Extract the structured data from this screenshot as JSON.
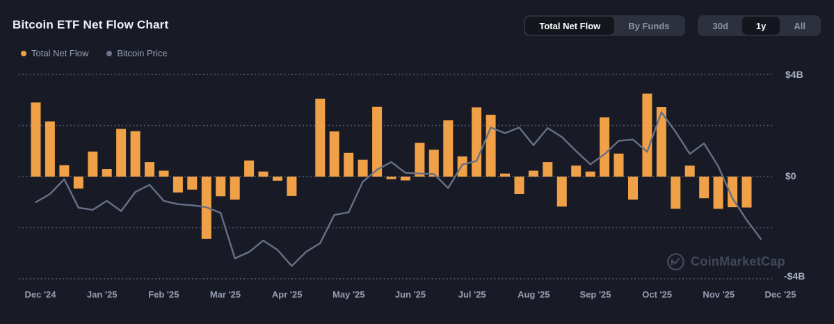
{
  "header": {
    "title": "Bitcoin ETF Net Flow Chart"
  },
  "legend": {
    "items": [
      {
        "label": "Total Net Flow",
        "color": "#f0a046"
      },
      {
        "label": "Bitcoin Price",
        "color": "#6d7488"
      }
    ]
  },
  "controls": {
    "view_toggle": {
      "options": [
        "Total Net Flow",
        "By Funds"
      ],
      "selected": "Total Net Flow"
    },
    "range_toggle": {
      "options": [
        "30d",
        "1y",
        "All"
      ],
      "selected": "1y"
    }
  },
  "watermark": {
    "text": "CoinMarketCap",
    "logo": "coinmarketcap-logo"
  },
  "colors": {
    "background": "#181b26",
    "bar": "#f0a046",
    "line": "#687085",
    "grid": "#5d6375",
    "control_bg": "#2d313d",
    "selected_pill_bg": "#14161e"
  },
  "chart_data": {
    "type": "bar",
    "title": "Bitcoin ETF Net Flow Chart",
    "x_unit": "week",
    "x_range": [
      "Dec 2024",
      "Dec 2025"
    ],
    "x_tick_labels": [
      "Dec '24",
      "Jan '25",
      "Feb '25",
      "Mar '25",
      "Apr '25",
      "May '25",
      "Jun '25",
      "Jul '25",
      "Aug '25",
      "Sep '25",
      "Oct '25",
      "Nov '25",
      "Dec '25"
    ],
    "y_tick_labels": [
      "$4B",
      "$0",
      "-$4B"
    ],
    "y_gridlines_billions": [
      4,
      2,
      0,
      -2,
      -4
    ],
    "ylim": [
      -4.3,
      4.35
    ],
    "y_unit": "USD billions (net flow)",
    "grid": "horizontal dotted",
    "legend_position": "top-left",
    "series": [
      {
        "name": "Total Net Flow",
        "type": "bar",
        "color": "#f0a046",
        "unit": "$B",
        "values": [
          2.9,
          2.16,
          0.45,
          -0.47,
          0.98,
          0.3,
          1.87,
          1.78,
          0.57,
          0.23,
          -0.62,
          -0.51,
          -2.44,
          -0.77,
          -0.9,
          0.63,
          0.2,
          -0.16,
          -0.76,
          0.02,
          3.05,
          1.77,
          0.93,
          0.66,
          2.73,
          -0.1,
          -0.15,
          1.32,
          1.05,
          2.2,
          0.79,
          2.71,
          2.42,
          0.12,
          -0.68,
          0.23,
          0.57,
          -1.17,
          0.43,
          0.2,
          2.32,
          0.9,
          -0.9,
          3.25,
          2.72,
          -1.26,
          0.43,
          -0.85,
          -1.26,
          -1.2,
          -1.21,
          0
        ]
      },
      {
        "name": "Bitcoin Price",
        "type": "line",
        "color": "#687085",
        "note": "price axis not shown in chart; values are display positions mapped onto the net-flow axis in $B",
        "values": [
          -1.0,
          -0.68,
          -0.1,
          -1.22,
          -1.3,
          -0.95,
          -1.35,
          -0.6,
          -0.32,
          -0.95,
          -1.08,
          -1.12,
          -1.2,
          -1.42,
          -3.2,
          -2.95,
          -2.5,
          -2.87,
          -3.5,
          -2.95,
          -2.6,
          -1.5,
          -1.4,
          -0.2,
          0.27,
          0.57,
          0.15,
          0.12,
          0.1,
          -0.45,
          0.47,
          0.61,
          1.92,
          1.7,
          1.92,
          1.23,
          1.9,
          1.55,
          1.0,
          0.48,
          0.88,
          1.4,
          1.45,
          0.97,
          2.52,
          1.75,
          0.89,
          1.3,
          0.4,
          -0.85,
          -1.7,
          -2.44
        ]
      }
    ]
  }
}
